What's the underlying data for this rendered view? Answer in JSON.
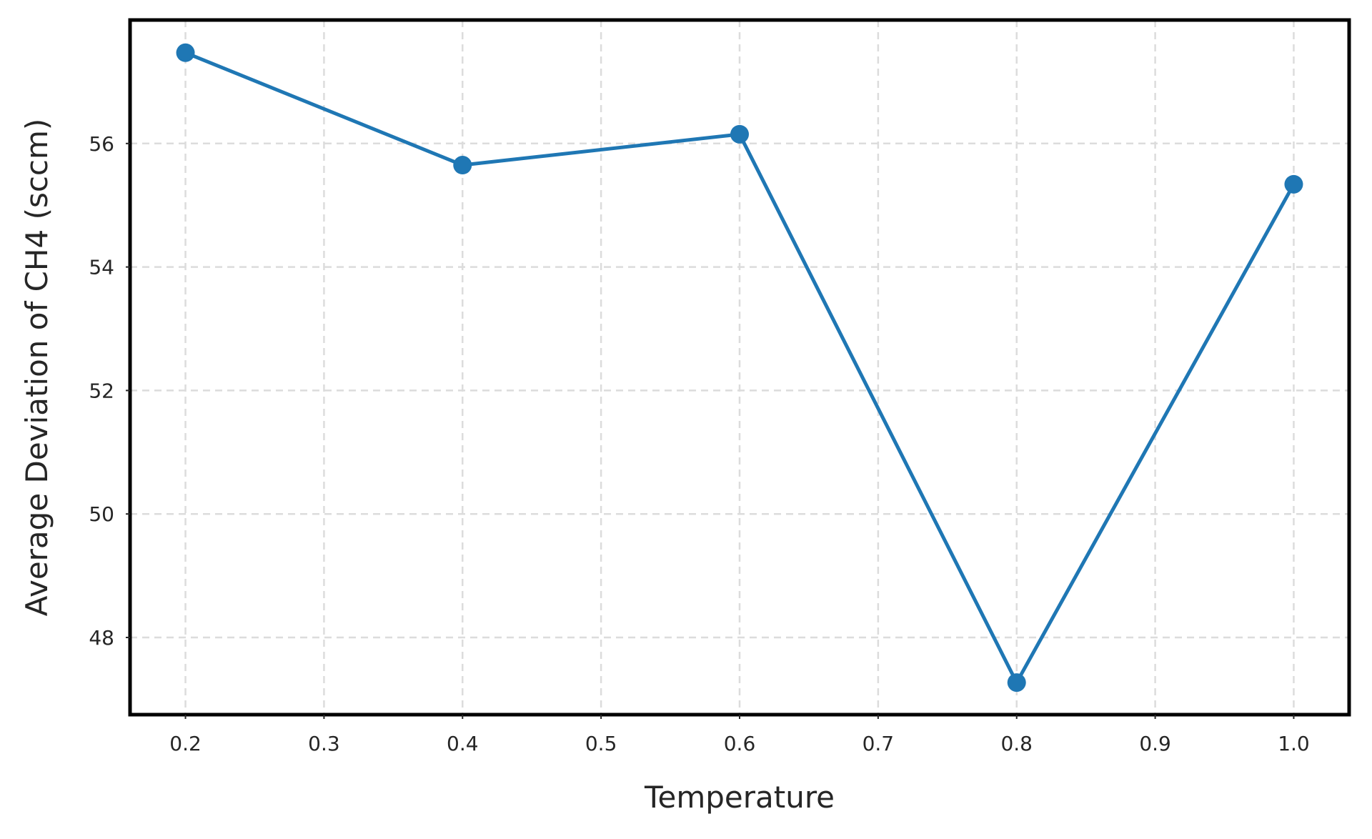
{
  "chart_data": {
    "type": "line",
    "title": "",
    "xlabel": "Temperature",
    "ylabel": "Average Deviation of CH4 (sccm)",
    "xlim": [
      0.16,
      1.04
    ],
    "ylim": [
      46.75,
      58.0
    ],
    "x_ticks": [
      0.2,
      0.3,
      0.4,
      0.5,
      0.6,
      0.7,
      0.8,
      0.9,
      1.0
    ],
    "x_tick_labels": [
      "0.2",
      "0.3",
      "0.4",
      "0.5",
      "0.6",
      "0.7",
      "0.8",
      "0.9",
      "1.0"
    ],
    "y_ticks": [
      48,
      50,
      52,
      54,
      56
    ],
    "y_tick_labels": [
      "48",
      "50",
      "52",
      "54",
      "56"
    ],
    "grid": true,
    "legend": "none",
    "series": [
      {
        "color": "#1f77b4",
        "marker": "circle",
        "x": [
          0.2,
          0.4,
          0.6,
          0.8,
          1.0
        ],
        "y": [
          57.47,
          55.65,
          56.15,
          47.27,
          55.34
        ]
      }
    ]
  }
}
